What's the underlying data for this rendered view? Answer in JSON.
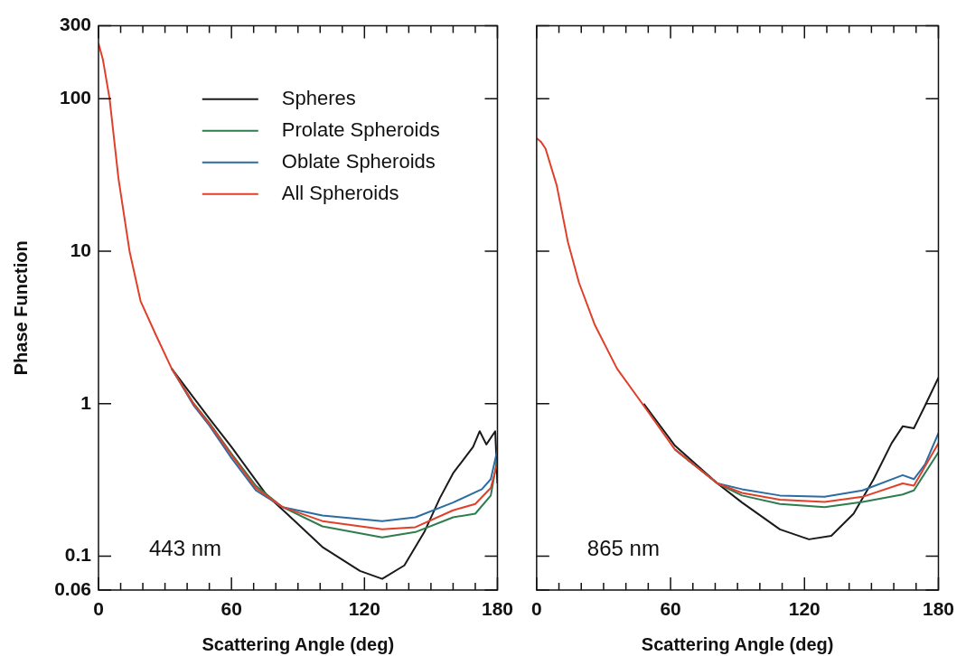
{
  "chart_data": [
    {
      "type": "line",
      "xlabel": "Scattering Angle (deg)",
      "ylabel": "Phase Function",
      "log": true,
      "grid": false,
      "legend": "top",
      "marker": "none",
      "line_style": "solid",
      "xlim": [
        0,
        180
      ],
      "xticks": [
        0,
        {
          "value": 10,
          "label": null
        },
        {
          "value": 20,
          "label": null
        },
        {
          "value": 30,
          "label": null
        },
        {
          "value": 40,
          "label": null
        },
        {
          "value": 50,
          "label": null
        },
        60,
        {
          "value": 70,
          "label": null
        },
        {
          "value": 80,
          "label": null
        },
        {
          "value": 90,
          "label": null
        },
        {
          "value": 100,
          "label": null
        },
        {
          "value": 110,
          "label": null
        },
        120,
        {
          "value": 130,
          "label": null
        },
        {
          "value": 140,
          "label": null
        },
        {
          "value": 150,
          "label": null
        },
        {
          "value": 160,
          "label": null
        },
        {
          "value": 170,
          "label": null
        },
        180
      ],
      "ylim": [
        0.06,
        300
      ],
      "yticks": [
        0.06,
        0.1,
        1,
        10,
        100,
        300
      ],
      "annotations": [
        "443 nm"
      ],
      "series": [
        {
          "name": "Spheres",
          "color": "#1a1a1a",
          "x": [
            33,
            43,
            50,
            60,
            76,
            85,
            101,
            118,
            128,
            138,
            147,
            154,
            160,
            169,
            172,
            175,
            179,
            180
          ],
          "values": [
            1.7,
            1.09,
            0.8,
            0.52,
            0.25,
            0.19,
            0.115,
            0.08,
            0.071,
            0.087,
            0.144,
            0.24,
            0.35,
            0.52,
            0.66,
            0.54,
            0.66,
            0.3
          ]
        },
        {
          "name": "Prolate Spheroids",
          "color": "#2e7d4f",
          "x": [
            33,
            43,
            50,
            60,
            71,
            83,
            101,
            128,
            143,
            160,
            170,
            177,
            180
          ],
          "values": [
            1.7,
            1.0,
            0.75,
            0.47,
            0.29,
            0.21,
            0.157,
            0.133,
            0.144,
            0.18,
            0.19,
            0.25,
            0.44
          ]
        },
        {
          "name": "Oblate Spheroids",
          "color": "#2b6ca3",
          "x": [
            33,
            43,
            50,
            60,
            71,
            83,
            101,
            128,
            143,
            160,
            173,
            177,
            180
          ],
          "values": [
            1.7,
            0.97,
            0.72,
            0.44,
            0.27,
            0.21,
            0.185,
            0.17,
            0.18,
            0.225,
            0.275,
            0.32,
            0.5
          ]
        },
        {
          "name": "All Spheroids",
          "color": "#e0402a",
          "x": [
            0,
            2,
            5,
            9,
            14,
            19,
            26,
            33,
            43,
            50,
            60,
            71,
            83,
            101,
            128,
            143,
            160,
            170,
            177,
            180
          ],
          "values": [
            230,
            180,
            100,
            30,
            10,
            4.7,
            2.8,
            1.7,
            0.99,
            0.74,
            0.46,
            0.28,
            0.21,
            0.17,
            0.15,
            0.155,
            0.2,
            0.22,
            0.28,
            0.41
          ]
        }
      ]
    },
    {
      "type": "line",
      "xlabel": "Scattering Angle (deg)",
      "log": true,
      "grid": false,
      "marker": "none",
      "line_style": "solid",
      "tick_labels": "x",
      "xlim": [
        0,
        180
      ],
      "xticks": [
        0,
        {
          "value": 10,
          "label": null
        },
        {
          "value": 20,
          "label": null
        },
        {
          "value": 30,
          "label": null
        },
        {
          "value": 40,
          "label": null
        },
        {
          "value": 50,
          "label": null
        },
        60,
        {
          "value": 70,
          "label": null
        },
        {
          "value": 80,
          "label": null
        },
        {
          "value": 90,
          "label": null
        },
        {
          "value": 100,
          "label": null
        },
        {
          "value": 110,
          "label": null
        },
        120,
        {
          "value": 130,
          "label": null
        },
        {
          "value": 140,
          "label": null
        },
        {
          "value": 150,
          "label": null
        },
        {
          "value": 160,
          "label": null
        },
        {
          "value": 170,
          "label": null
        },
        180
      ],
      "ylim": [
        0.06,
        300
      ],
      "yticks": [
        0.06,
        0.1,
        1,
        10,
        100,
        300
      ],
      "annotations": [
        "865 nm"
      ],
      "series": [
        {
          "color": "#1a1a1a",
          "x": [
            48,
            62,
            81,
            92,
            109,
            122,
            132,
            142,
            151,
            159,
            164,
            169,
            174,
            180
          ],
          "values": [
            1.0,
            0.53,
            0.3,
            0.225,
            0.15,
            0.129,
            0.136,
            0.19,
            0.32,
            0.55,
            0.71,
            0.69,
            0.97,
            1.48
          ]
        },
        {
          "color": "#2e7d4f",
          "x": [
            62,
            81,
            92,
            109,
            129,
            146,
            164,
            169,
            180
          ],
          "values": [
            0.5,
            0.3,
            0.25,
            0.22,
            0.21,
            0.227,
            0.254,
            0.27,
            0.48
          ]
        },
        {
          "color": "#2b6ca3",
          "x": [
            62,
            81,
            92,
            109,
            129,
            146,
            164,
            169,
            174,
            180
          ],
          "values": [
            0.5,
            0.3,
            0.275,
            0.25,
            0.245,
            0.27,
            0.34,
            0.32,
            0.4,
            0.64
          ]
        },
        {
          "color": "#e0402a",
          "x": [
            0,
            2,
            4,
            9,
            14,
            19,
            26,
            36,
            48,
            62,
            81,
            92,
            109,
            129,
            146,
            164,
            169,
            180
          ],
          "values": [
            55,
            52,
            47,
            27,
            11.5,
            6.2,
            3.3,
            1.7,
            0.97,
            0.5,
            0.3,
            0.26,
            0.235,
            0.227,
            0.245,
            0.3,
            0.29,
            0.55
          ]
        }
      ]
    }
  ]
}
